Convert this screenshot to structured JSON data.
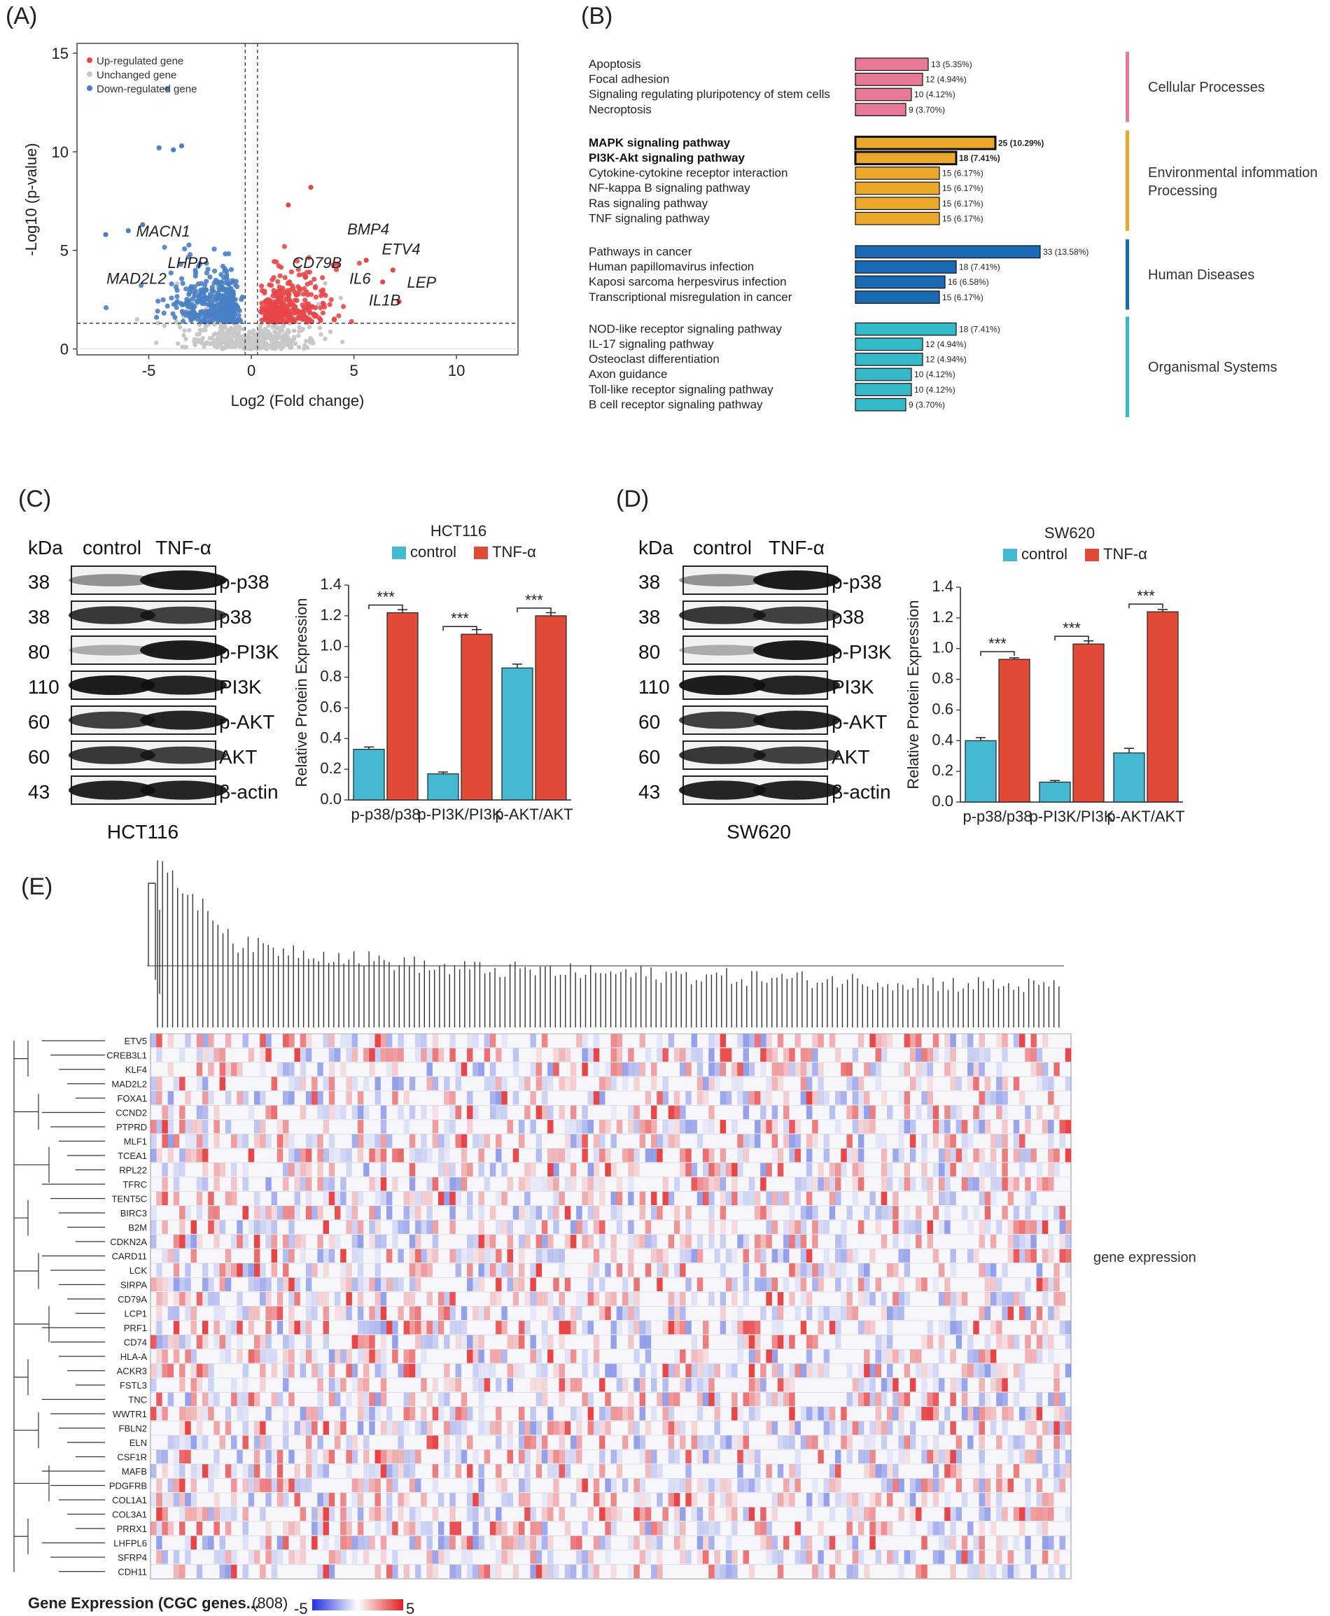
{
  "panels": {
    "a": "(A)",
    "b": "(B)",
    "c": "(C)",
    "d": "(D)",
    "e": "(E)"
  },
  "colors": {
    "up": "#e8474a",
    "down": "#4a7fc4",
    "unchanged": "#c8c8c8",
    "cellular": "#e87a97",
    "environmental": "#eba82a",
    "human": "#1a69b5",
    "organismal": "#35b8c8",
    "control": "#45b8d2",
    "tnf": "#e04a37"
  },
  "chart_data": [
    {
      "type": "scatter",
      "id": "volcano",
      "xlabel": "Log2 (Fold change)",
      "ylabel": "-Log10 (p-value)",
      "xlim": [
        -8.5,
        13
      ],
      "ylim": [
        -0.3,
        15.5
      ],
      "xticks": [
        "-5",
        "0",
        "5",
        "10"
      ],
      "yticks": [
        "0",
        "5",
        "10",
        "15"
      ],
      "thresholds": {
        "fc": [
          -0.3,
          0.3
        ],
        "p": 1.3
      },
      "legend": [
        "Up-regulated gene",
        "Unchanged gene",
        "Down-regulated gene"
      ],
      "annotations": [
        {
          "label": "MACN1",
          "x": -4.3,
          "y": 5.7
        },
        {
          "label": "LHPP",
          "x": -3.1,
          "y": 4.1
        },
        {
          "label": "MAD2L2",
          "x": -5.6,
          "y": 3.3
        },
        {
          "label": "BMP4",
          "x": 5.7,
          "y": 5.8
        },
        {
          "label": "ETV4",
          "x": 7.3,
          "y": 4.8
        },
        {
          "label": "CD79B",
          "x": 3.2,
          "y": 4.1
        },
        {
          "label": "IL6",
          "x": 5.3,
          "y": 3.3
        },
        {
          "label": "LEP",
          "x": 8.3,
          "y": 3.1
        },
        {
          "label": "IL1B",
          "x": 6.5,
          "y": 2.2
        }
      ]
    },
    {
      "type": "bar",
      "id": "kegg",
      "orientation": "horizontal",
      "groups": [
        {
          "name": "Cellular Processes",
          "color": "cellular",
          "items": [
            {
              "label": "Apoptosis",
              "value": 13,
              "pct": "13 (5.35%)",
              "bold": false
            },
            {
              "label": "Focal adhesion",
              "value": 12,
              "pct": "12 (4.94%)",
              "bold": false
            },
            {
              "label": "Signaling regulating pluripotency of stem cells",
              "value": 10,
              "pct": "10 (4.12%)",
              "bold": false
            },
            {
              "label": "Necroptosis",
              "value": 9,
              "pct": "9 (3.70%)",
              "bold": false
            }
          ]
        },
        {
          "name": "Environmental infommation\n Processing",
          "color": "environmental",
          "items": [
            {
              "label": "MAPK signaling pathway",
              "value": 25,
              "pct": "25 (10.29%)",
              "bold": true
            },
            {
              "label": "PI3K-Akt signaling pathway",
              "value": 18,
              "pct": "18 (7.41%)",
              "bold": true
            },
            {
              "label": "Cytokine-cytokine receptor interaction",
              "value": 15,
              "pct": "15 (6.17%)",
              "bold": false
            },
            {
              "label": "NF-kappa B signaling pathway",
              "value": 15,
              "pct": "15 (6.17%)",
              "bold": false
            },
            {
              "label": "Ras signaling pathway",
              "value": 15,
              "pct": "15 (6.17%)",
              "bold": false
            },
            {
              "label": "TNF signaling pathway",
              "value": 15,
              "pct": "15 (6.17%)",
              "bold": false
            }
          ]
        },
        {
          "name": "Human Diseases",
          "color": "human",
          "items": [
            {
              "label": "Pathways in cancer",
              "value": 33,
              "pct": "33 (13.58%)",
              "bold": false
            },
            {
              "label": "Human papillomavirus infection",
              "value": 18,
              "pct": "18 (7.41%)",
              "bold": false
            },
            {
              "label": "Kaposi sarcoma herpesvirus infection",
              "value": 16,
              "pct": "16 (6.58%)",
              "bold": false
            },
            {
              "label": "Transcriptional misregulation in cancer",
              "value": 15,
              "pct": "15 (6.17%)",
              "bold": false
            }
          ]
        },
        {
          "name": "Organismal Systems",
          "color": "organismal",
          "items": [
            {
              "label": "NOD-like receptor signaling pathway",
              "value": 18,
              "pct": "18 (7.41%)",
              "bold": false
            },
            {
              "label": "IL-17 signaling pathway",
              "value": 12,
              "pct": "12 (4.94%)",
              "bold": false
            },
            {
              "label": "Osteoclast differentiation",
              "value": 12,
              "pct": "12 (4.94%)",
              "bold": false
            },
            {
              "label": "Axon guidance",
              "value": 10,
              "pct": "10 (4.12%)",
              "bold": false
            },
            {
              "label": "Toll-like receptor signaling pathway",
              "value": 10,
              "pct": "10 (4.12%)",
              "bold": false
            },
            {
              "label": "B cell receptor signaling pathway",
              "value": 9,
              "pct": "9 (3.70%)",
              "bold": false
            }
          ]
        }
      ]
    },
    {
      "type": "bar",
      "id": "hct116",
      "title": "HCT116",
      "ylabel": "Relative Protein Expression",
      "ylim": [
        0,
        1.4
      ],
      "yticks": [
        "0.0",
        "0.2",
        "0.4",
        "0.6",
        "0.8",
        "1.0",
        "1.2",
        "1.4"
      ],
      "categories": [
        "p-p38/p38",
        "p-PI3K/PI3K",
        "p-AKT/AKT"
      ],
      "series": [
        {
          "name": "control",
          "values": [
            0.33,
            0.17,
            0.86
          ],
          "err": [
            0.015,
            0.012,
            0.025
          ]
        },
        {
          "name": "TNF-α",
          "values": [
            1.22,
            1.08,
            1.2
          ],
          "err": [
            0.02,
            0.03,
            0.02
          ]
        }
      ],
      "sig": [
        "***",
        "***",
        "***"
      ]
    },
    {
      "type": "bar",
      "id": "sw620",
      "title": "SW620",
      "ylabel": "Relative Protein Expression",
      "ylim": [
        0,
        1.4
      ],
      "yticks": [
        "0.0",
        "0.2",
        "0.4",
        "0.6",
        "0.8",
        "1.0",
        "1.2",
        "1.4"
      ],
      "categories": [
        "p-p38/p38",
        "p-PI3K/PI3K",
        "p-AKT/AKT"
      ],
      "series": [
        {
          "name": "control",
          "values": [
            0.4,
            0.13,
            0.32
          ],
          "err": [
            0.02,
            0.01,
            0.03
          ]
        },
        {
          "name": "TNF-α",
          "values": [
            0.93,
            1.03,
            1.24
          ],
          "err": [
            0.01,
            0.02,
            0.015
          ]
        }
      ],
      "sig": [
        "***",
        "***",
        "***"
      ]
    },
    {
      "type": "heatmap",
      "id": "gene-heatmap",
      "title": "gene expression",
      "legend_title": "Gene Expression (CGC genes...",
      "legend_count": "(808)",
      "range": [
        "-5",
        "5"
      ],
      "genes": [
        "ETV5",
        "CREB3L1",
        "KLF4",
        "MAD2L2",
        "FOXA1",
        "CCND2",
        "PTPRD",
        "MLF1",
        "TCEA1",
        "RPL22",
        "TFRC",
        "TENT5C",
        "BIRC3",
        "B2M",
        "CDKN2A",
        "CARD11",
        "LCK",
        "SIRPA",
        "CD79A",
        "LCP1",
        "PRF1",
        "CD74",
        "HLA-A",
        "ACKR3",
        "FSTL3",
        "TNC",
        "WWTR1",
        "FBLN2",
        "ELN",
        "CSF1R",
        "MAFB",
        "PDGFRB",
        "COL1A1",
        "COL3A1",
        "PRRX1",
        "LHFPL6",
        "SFRP4",
        "CDH11"
      ]
    }
  ],
  "western": {
    "hct116": {
      "cell": "HCT116",
      "kda_label": "kDa",
      "lanes": [
        "control",
        "TNF-α"
      ],
      "rows": [
        {
          "kda": "38",
          "name": "p-p38"
        },
        {
          "kda": "38",
          "name": "p38"
        },
        {
          "kda": "80",
          "name": "p-PI3K"
        },
        {
          "kda": "110",
          "name": "PI3K"
        },
        {
          "kda": "60",
          "name": "p-AKT"
        },
        {
          "kda": "60",
          "name": "AKT"
        },
        {
          "kda": "43",
          "name": "β-actin"
        }
      ]
    },
    "sw620": {
      "cell": "SW620",
      "kda_label": "kDa",
      "lanes": [
        "control",
        "TNF-α"
      ],
      "rows": [
        {
          "kda": "38",
          "name": "p-p38"
        },
        {
          "kda": "38",
          "name": "p38"
        },
        {
          "kda": "80",
          "name": "p-PI3K"
        },
        {
          "kda": "110",
          "name": "PI3K"
        },
        {
          "kda": "60",
          "name": "p-AKT"
        },
        {
          "kda": "60",
          "name": "AKT"
        },
        {
          "kda": "43",
          "name": "β-actin"
        }
      ]
    }
  }
}
